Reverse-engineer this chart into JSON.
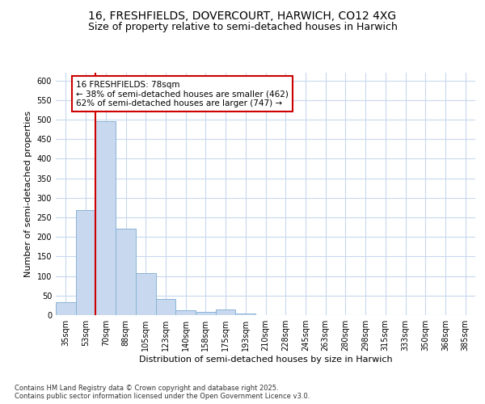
{
  "title_line1": "16, FRESHFIELDS, DOVERCOURT, HARWICH, CO12 4XG",
  "title_line2": "Size of property relative to semi-detached houses in Harwich",
  "xlabel": "Distribution of semi-detached houses by size in Harwich",
  "ylabel": "Number of semi-detached properties",
  "categories": [
    "35sqm",
    "53sqm",
    "70sqm",
    "88sqm",
    "105sqm",
    "123sqm",
    "140sqm",
    "158sqm",
    "175sqm",
    "193sqm",
    "210sqm",
    "228sqm",
    "245sqm",
    "263sqm",
    "280sqm",
    "298sqm",
    "315sqm",
    "333sqm",
    "350sqm",
    "368sqm",
    "385sqm"
  ],
  "values": [
    33,
    268,
    495,
    222,
    108,
    42,
    13,
    8,
    14,
    5,
    1,
    0,
    0,
    0,
    0,
    0,
    0,
    1,
    0,
    0,
    1
  ],
  "bar_color": "#c8d8ee",
  "bar_edge_color": "#8ab4d8",
  "property_line_color": "#cc0000",
  "annotation_text": "16 FRESHFIELDS: 78sqm\n← 38% of semi-detached houses are smaller (462)\n62% of semi-detached houses are larger (747) →",
  "annotation_box_facecolor": "#ffffff",
  "annotation_box_edgecolor": "#cc0000",
  "ylim": [
    0,
    620
  ],
  "yticks": [
    0,
    50,
    100,
    150,
    200,
    250,
    300,
    350,
    400,
    450,
    500,
    550,
    600
  ],
  "fig_background": "#ffffff",
  "plot_background": "#ffffff",
  "grid_color": "#c8d8ee",
  "footer": "Contains HM Land Registry data © Crown copyright and database right 2025.\nContains public sector information licensed under the Open Government Licence v3.0.",
  "title_fontsize": 10,
  "subtitle_fontsize": 9,
  "tick_fontsize": 7,
  "ylabel_fontsize": 8,
  "xlabel_fontsize": 8,
  "footer_fontsize": 6,
  "annot_fontsize": 7.5
}
